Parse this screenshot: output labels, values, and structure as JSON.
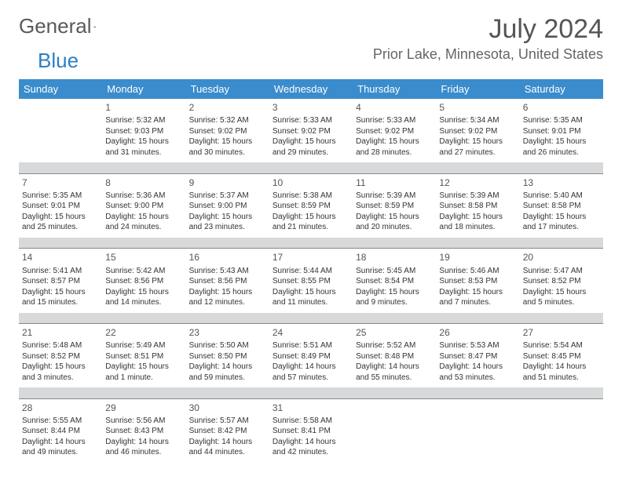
{
  "logo": {
    "text1": "General",
    "text2": "Blue"
  },
  "title": "July 2024",
  "location": "Prior Lake, Minnesota, United States",
  "colors": {
    "header_bg": "#3a8ccc",
    "header_fg": "#ffffff",
    "sep_bg": "#d7d9db",
    "text": "#333333",
    "logo_gray": "#5a5a5a",
    "logo_blue": "#2d7fc1"
  },
  "day_headers": [
    "Sunday",
    "Monday",
    "Tuesday",
    "Wednesday",
    "Thursday",
    "Friday",
    "Saturday"
  ],
  "weeks": [
    [
      null,
      {
        "n": "1",
        "sr": "Sunrise: 5:32 AM",
        "ss": "Sunset: 9:03 PM",
        "d1": "Daylight: 15 hours",
        "d2": "and 31 minutes."
      },
      {
        "n": "2",
        "sr": "Sunrise: 5:32 AM",
        "ss": "Sunset: 9:02 PM",
        "d1": "Daylight: 15 hours",
        "d2": "and 30 minutes."
      },
      {
        "n": "3",
        "sr": "Sunrise: 5:33 AM",
        "ss": "Sunset: 9:02 PM",
        "d1": "Daylight: 15 hours",
        "d2": "and 29 minutes."
      },
      {
        "n": "4",
        "sr": "Sunrise: 5:33 AM",
        "ss": "Sunset: 9:02 PM",
        "d1": "Daylight: 15 hours",
        "d2": "and 28 minutes."
      },
      {
        "n": "5",
        "sr": "Sunrise: 5:34 AM",
        "ss": "Sunset: 9:02 PM",
        "d1": "Daylight: 15 hours",
        "d2": "and 27 minutes."
      },
      {
        "n": "6",
        "sr": "Sunrise: 5:35 AM",
        "ss": "Sunset: 9:01 PM",
        "d1": "Daylight: 15 hours",
        "d2": "and 26 minutes."
      }
    ],
    [
      {
        "n": "7",
        "sr": "Sunrise: 5:35 AM",
        "ss": "Sunset: 9:01 PM",
        "d1": "Daylight: 15 hours",
        "d2": "and 25 minutes."
      },
      {
        "n": "8",
        "sr": "Sunrise: 5:36 AM",
        "ss": "Sunset: 9:00 PM",
        "d1": "Daylight: 15 hours",
        "d2": "and 24 minutes."
      },
      {
        "n": "9",
        "sr": "Sunrise: 5:37 AM",
        "ss": "Sunset: 9:00 PM",
        "d1": "Daylight: 15 hours",
        "d2": "and 23 minutes."
      },
      {
        "n": "10",
        "sr": "Sunrise: 5:38 AM",
        "ss": "Sunset: 8:59 PM",
        "d1": "Daylight: 15 hours",
        "d2": "and 21 minutes."
      },
      {
        "n": "11",
        "sr": "Sunrise: 5:39 AM",
        "ss": "Sunset: 8:59 PM",
        "d1": "Daylight: 15 hours",
        "d2": "and 20 minutes."
      },
      {
        "n": "12",
        "sr": "Sunrise: 5:39 AM",
        "ss": "Sunset: 8:58 PM",
        "d1": "Daylight: 15 hours",
        "d2": "and 18 minutes."
      },
      {
        "n": "13",
        "sr": "Sunrise: 5:40 AM",
        "ss": "Sunset: 8:58 PM",
        "d1": "Daylight: 15 hours",
        "d2": "and 17 minutes."
      }
    ],
    [
      {
        "n": "14",
        "sr": "Sunrise: 5:41 AM",
        "ss": "Sunset: 8:57 PM",
        "d1": "Daylight: 15 hours",
        "d2": "and 15 minutes."
      },
      {
        "n": "15",
        "sr": "Sunrise: 5:42 AM",
        "ss": "Sunset: 8:56 PM",
        "d1": "Daylight: 15 hours",
        "d2": "and 14 minutes."
      },
      {
        "n": "16",
        "sr": "Sunrise: 5:43 AM",
        "ss": "Sunset: 8:56 PM",
        "d1": "Daylight: 15 hours",
        "d2": "and 12 minutes."
      },
      {
        "n": "17",
        "sr": "Sunrise: 5:44 AM",
        "ss": "Sunset: 8:55 PM",
        "d1": "Daylight: 15 hours",
        "d2": "and 11 minutes."
      },
      {
        "n": "18",
        "sr": "Sunrise: 5:45 AM",
        "ss": "Sunset: 8:54 PM",
        "d1": "Daylight: 15 hours",
        "d2": "and 9 minutes."
      },
      {
        "n": "19",
        "sr": "Sunrise: 5:46 AM",
        "ss": "Sunset: 8:53 PM",
        "d1": "Daylight: 15 hours",
        "d2": "and 7 minutes."
      },
      {
        "n": "20",
        "sr": "Sunrise: 5:47 AM",
        "ss": "Sunset: 8:52 PM",
        "d1": "Daylight: 15 hours",
        "d2": "and 5 minutes."
      }
    ],
    [
      {
        "n": "21",
        "sr": "Sunrise: 5:48 AM",
        "ss": "Sunset: 8:52 PM",
        "d1": "Daylight: 15 hours",
        "d2": "and 3 minutes."
      },
      {
        "n": "22",
        "sr": "Sunrise: 5:49 AM",
        "ss": "Sunset: 8:51 PM",
        "d1": "Daylight: 15 hours",
        "d2": "and 1 minute."
      },
      {
        "n": "23",
        "sr": "Sunrise: 5:50 AM",
        "ss": "Sunset: 8:50 PM",
        "d1": "Daylight: 14 hours",
        "d2": "and 59 minutes."
      },
      {
        "n": "24",
        "sr": "Sunrise: 5:51 AM",
        "ss": "Sunset: 8:49 PM",
        "d1": "Daylight: 14 hours",
        "d2": "and 57 minutes."
      },
      {
        "n": "25",
        "sr": "Sunrise: 5:52 AM",
        "ss": "Sunset: 8:48 PM",
        "d1": "Daylight: 14 hours",
        "d2": "and 55 minutes."
      },
      {
        "n": "26",
        "sr": "Sunrise: 5:53 AM",
        "ss": "Sunset: 8:47 PM",
        "d1": "Daylight: 14 hours",
        "d2": "and 53 minutes."
      },
      {
        "n": "27",
        "sr": "Sunrise: 5:54 AM",
        "ss": "Sunset: 8:45 PM",
        "d1": "Daylight: 14 hours",
        "d2": "and 51 minutes."
      }
    ],
    [
      {
        "n": "28",
        "sr": "Sunrise: 5:55 AM",
        "ss": "Sunset: 8:44 PM",
        "d1": "Daylight: 14 hours",
        "d2": "and 49 minutes."
      },
      {
        "n": "29",
        "sr": "Sunrise: 5:56 AM",
        "ss": "Sunset: 8:43 PM",
        "d1": "Daylight: 14 hours",
        "d2": "and 46 minutes."
      },
      {
        "n": "30",
        "sr": "Sunrise: 5:57 AM",
        "ss": "Sunset: 8:42 PM",
        "d1": "Daylight: 14 hours",
        "d2": "and 44 minutes."
      },
      {
        "n": "31",
        "sr": "Sunrise: 5:58 AM",
        "ss": "Sunset: 8:41 PM",
        "d1": "Daylight: 14 hours",
        "d2": "and 42 minutes."
      },
      null,
      null,
      null
    ]
  ]
}
